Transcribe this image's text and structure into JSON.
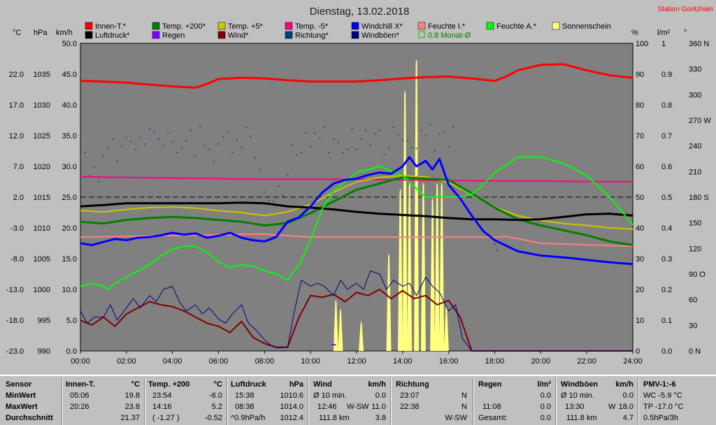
{
  "chart_data": {
    "type": "line",
    "title": "Dienstag, 13.02.2018",
    "station": "Station Goritzhain",
    "colors": {
      "plot_bg": "#808080",
      "frame_bg": "#c0c0c0",
      "station": "#ff0000",
      "title": "#202020",
      "axis_text": "#000000"
    },
    "unit_labels": {
      "celsius": "°C",
      "hpa": "hPa",
      "kmh": "km/h",
      "percent": "%",
      "lm2": "l/m²",
      "degree": "°"
    },
    "x_ticks": [
      "00:00",
      "02:00",
      "04:00",
      "06:00",
      "08:00",
      "10:00",
      "12:00",
      "14:00",
      "16:00",
      "18:00",
      "20:00",
      "22:00",
      "24:00"
    ],
    "left_temp_ticks": [
      "22.0",
      "17.0",
      "12.0",
      "7.0",
      "2.0",
      "-3.0",
      "-8.0",
      "-13.0",
      "-18.0",
      "-23.0"
    ],
    "left_hpa_ticks": [
      "1035",
      "1030",
      "1025",
      "1020",
      "1015",
      "1010",
      "1005",
      "1000",
      "995",
      "990"
    ],
    "left_kmh_ticks": [
      "50.0",
      "45.0",
      "40.0",
      "35.0",
      "30.0",
      "25.0",
      "20.0",
      "15.0",
      "10.0",
      "5.0",
      "0.0"
    ],
    "right_pct_ticks": [
      "100",
      "90",
      "80",
      "70",
      "60",
      "50",
      "40",
      "30",
      "20",
      "10",
      "0"
    ],
    "right_lm2_ticks": [
      "1",
      "0.9",
      "0.8",
      "0.7",
      "0.6",
      "0.5",
      "0.4",
      "0.3",
      "0.2",
      "0.1",
      "0.0"
    ],
    "right_deg_ticks": [
      "360 N",
      "330",
      "300",
      "270 W",
      "240",
      "210",
      "180 S",
      "150",
      "120",
      "90 O",
      "60",
      "30",
      "0   N"
    ],
    "legend": [
      {
        "label": "Innen-T.*",
        "color": "#ff0000"
      },
      {
        "label": "Temp. +200*",
        "color": "#008000"
      },
      {
        "label": "Temp. +5*",
        "color": "#c8c800"
      },
      {
        "label": "Temp. -5*",
        "color": "#ff0080"
      },
      {
        "label": "Windchill X*",
        "color": "#0000ff"
      },
      {
        "label": "Feuchte I.*",
        "color": "#ff8080"
      },
      {
        "label": "Feuchte A.*",
        "color": "#00ff00"
      },
      {
        "label": "Sonnenschein",
        "color": "#ffff80"
      },
      {
        "label": "Luftdruck*",
        "color": "#000000"
      },
      {
        "label": "Regen",
        "color": "#8000ff"
      },
      {
        "label": "Wind*",
        "color": "#800000"
      },
      {
        "label": "Richtung*",
        "color": "#004080"
      },
      {
        "label": "Windböen*",
        "color": "#000080"
      },
      {
        "label": "0.8 Monat-Ø",
        "color": "#00c000",
        "text_color": "#008000",
        "hollow": true
      }
    ],
    "series": [
      {
        "name": "Innen-T.",
        "color": "#ff0000",
        "axis": "temp",
        "width": 3,
        "x": [
          0,
          1,
          2,
          3,
          4,
          5,
          5.5,
          6,
          7,
          8,
          9,
          10,
          11,
          12,
          13,
          14,
          15,
          16,
          17,
          18,
          18.5,
          19,
          20,
          21,
          22,
          23,
          24
        ],
        "y": [
          20.9,
          20.8,
          20.6,
          20.3,
          20.0,
          19.8,
          20.4,
          21.2,
          21.4,
          21.3,
          21.0,
          20.8,
          20.8,
          20.8,
          21.0,
          21.3,
          21.5,
          21.6,
          21.3,
          20.9,
          21.6,
          22.6,
          23.5,
          23.6,
          22.6,
          21.8,
          21.4
        ]
      },
      {
        "name": "Temp. +200",
        "color": "#008000",
        "axis": "temp",
        "width": 3,
        "x": [
          0,
          1,
          2,
          3,
          4,
          5,
          6,
          7,
          8,
          9,
          10,
          11,
          12,
          13,
          14,
          15,
          16,
          17,
          18,
          19,
          20,
          21,
          22,
          23,
          24
        ],
        "y": [
          -2.0,
          -2.3,
          -1.7,
          -1.4,
          -1.2,
          -1.4,
          -1.7,
          -2.0,
          -2.6,
          -2.2,
          -0.6,
          1.3,
          3.2,
          4.2,
          5.2,
          5.0,
          4.8,
          2.6,
          0.3,
          -1.6,
          -2.6,
          -3.4,
          -4.2,
          -5.2,
          -5.8
        ]
      },
      {
        "name": "Temp. +5",
        "color": "#c8c800",
        "axis": "temp",
        "width": 2,
        "x": [
          0,
          1,
          2,
          3,
          4,
          5,
          6,
          7,
          8,
          9,
          10,
          11,
          12,
          13,
          14,
          15,
          16,
          17,
          18,
          19,
          20,
          21,
          22,
          23,
          24
        ],
        "y": [
          -0.2,
          -0.4,
          0.0,
          0.3,
          0.4,
          0.2,
          -0.2,
          -0.5,
          -1.0,
          -0.4,
          0.8,
          2.8,
          4.5,
          5.2,
          5.5,
          5.3,
          4.4,
          2.4,
          0.4,
          -1.0,
          -1.8,
          -2.3,
          -2.6,
          -3.0,
          -3.2
        ]
      },
      {
        "name": "Temp. -5",
        "color": "#ff0080",
        "axis": "temp",
        "width": 2,
        "x": [
          0,
          4,
          8,
          12,
          16,
          20,
          24
        ],
        "y": [
          5.3,
          5.1,
          4.9,
          4.9,
          4.7,
          4.6,
          4.5
        ]
      },
      {
        "name": "Windchill X",
        "color": "#0000ff",
        "axis": "temp",
        "width": 3,
        "x": [
          0,
          0.5,
          1,
          1.5,
          2,
          2.5,
          3,
          3.5,
          4,
          4.5,
          5,
          5.5,
          6,
          6.5,
          7,
          7.5,
          8,
          8.5,
          9,
          9.5,
          10,
          10.5,
          11,
          11.5,
          12,
          12.5,
          13,
          13.5,
          14,
          14.3,
          14.6,
          15,
          15.3,
          15.6,
          16,
          16.5,
          17,
          17.5,
          18,
          19,
          20,
          21,
          22,
          23,
          24
        ],
        "y": [
          -5.5,
          -5.8,
          -5.3,
          -4.8,
          -5.0,
          -4.6,
          -4.5,
          -4.2,
          -3.8,
          -4.1,
          -3.9,
          -4.6,
          -4.3,
          -3.8,
          -4.6,
          -5.0,
          -5.2,
          -4.5,
          -2.0,
          -1.3,
          0.5,
          2.7,
          4.2,
          4.8,
          5.0,
          5.6,
          6.0,
          5.8,
          7.0,
          8.5,
          7.0,
          7.9,
          6.5,
          8.2,
          4.0,
          1.8,
          -1.0,
          -3.5,
          -5.0,
          -6.8,
          -7.5,
          -7.8,
          -8.2,
          -8.6,
          -8.9
        ]
      },
      {
        "name": "Feuchte I.",
        "color": "#ff8080",
        "axis": "pct",
        "width": 2,
        "x": [
          0,
          4,
          8,
          10,
          12,
          14,
          16,
          17,
          17.5,
          18,
          18.5,
          19,
          20,
          24
        ],
        "y": [
          37,
          37.5,
          38,
          37,
          37,
          37,
          37,
          37,
          37,
          37,
          37.2,
          36.5,
          35,
          34
        ]
      },
      {
        "name": "Feuchte A.",
        "color": "#00ff00",
        "axis": "pct",
        "width": 2,
        "x": [
          0,
          0.5,
          1,
          1.2,
          1.5,
          2,
          2.5,
          3,
          3.5,
          4,
          4.5,
          5,
          5.5,
          6,
          6.5,
          7,
          7.5,
          8,
          8.5,
          9,
          9.5,
          10,
          10.5,
          11,
          11.5,
          12,
          12.5,
          13,
          14,
          15,
          15.5,
          16,
          16.5,
          17,
          17.5,
          18,
          19,
          20,
          21,
          22,
          23,
          24
        ],
        "y": [
          21,
          22,
          21,
          20,
          22,
          24,
          26,
          28,
          31,
          33,
          34,
          34,
          32,
          29,
          27,
          28,
          27.5,
          26,
          25,
          23,
          28,
          36,
          46,
          52,
          55,
          58,
          59,
          60,
          57,
          50,
          50,
          50,
          50,
          51,
          54,
          58,
          63,
          63,
          61,
          57,
          50,
          41
        ]
      },
      {
        "name": "Luftdruck",
        "color": "#000000",
        "axis": "hpa",
        "width": 3,
        "x": [
          0,
          1,
          2,
          3,
          4,
          5,
          6,
          7,
          8,
          9,
          10,
          11,
          12,
          13,
          14,
          15,
          16,
          17,
          18,
          19,
          20,
          21,
          22,
          23,
          24
        ],
        "y": [
          1013.5,
          1013.7,
          1014.0,
          1014.0,
          1014.0,
          1014.0,
          1014.0,
          1014.1,
          1014.0,
          1013.5,
          1013.3,
          1013.0,
          1012.6,
          1012.3,
          1012.1,
          1011.9,
          1011.6,
          1011.4,
          1011.4,
          1011.3,
          1011.4,
          1011.8,
          1012.2,
          1012.3,
          1012.0
        ]
      },
      {
        "name": "Wind",
        "color": "#800000",
        "axis": "kmh",
        "width": 2,
        "x": [
          0,
          0.5,
          1,
          1.5,
          2,
          2.5,
          3,
          3.5,
          4,
          4.5,
          5,
          5.5,
          6,
          6.5,
          7,
          7.5,
          8,
          8.5,
          9,
          9.5,
          10,
          10.5,
          11,
          11.5,
          12,
          12.5,
          13,
          13.5,
          14,
          14.5,
          15,
          15.5,
          16,
          16.5,
          17,
          18,
          19,
          24
        ],
        "y": [
          5.0,
          4.2,
          5.5,
          4.0,
          6.0,
          7.0,
          8.0,
          7.5,
          7.2,
          6.5,
          5.5,
          4.5,
          4.0,
          3.0,
          4.8,
          2.2,
          1.2,
          0.6,
          0.6,
          5.5,
          9.0,
          8.7,
          9.2,
          8.0,
          9.5,
          9.0,
          10.0,
          8.5,
          9.8,
          8.5,
          9.0,
          7.5,
          8.2,
          5.5,
          0.0,
          0.0,
          0.0,
          0.0
        ]
      },
      {
        "name": "Windböen",
        "color": "#000080",
        "axis": "kmh",
        "width": 1,
        "x": [
          0,
          0.3,
          0.6,
          1,
          1.3,
          1.6,
          2,
          2.3,
          2.6,
          3,
          3.3,
          3.6,
          4,
          4.3,
          4.6,
          5,
          5.3,
          5.6,
          6,
          6.3,
          6.6,
          7,
          7.3,
          7.6,
          8,
          8.3,
          8.6,
          9,
          9.3,
          9.6,
          10,
          10.3,
          10.6,
          11,
          11.3,
          11.6,
          12,
          12.3,
          12.6,
          13,
          13.3,
          13.6,
          14,
          14.3,
          14.6,
          15,
          15.3,
          15.6,
          16,
          16.3,
          16.6,
          17,
          18,
          19,
          24
        ],
        "y": [
          6.5,
          4.5,
          5.5,
          5.5,
          7.5,
          5.0,
          7.0,
          8.5,
          7.0,
          9.0,
          8.0,
          10.0,
          10.5,
          8.0,
          6.5,
          7.5,
          6.0,
          7.0,
          5.2,
          4.5,
          6.0,
          7.5,
          4.5,
          3.5,
          1.8,
          0.8,
          0.5,
          0.6,
          6.5,
          11.5,
          10.5,
          11.0,
          10.5,
          9.0,
          11.5,
          10.0,
          11.0,
          10.0,
          13.0,
          12.5,
          10.0,
          11.5,
          10.5,
          11.0,
          9.0,
          12.0,
          10.5,
          9.5,
          6.5,
          7.5,
          2.0,
          0.0,
          0.0,
          0.0,
          0.0
        ]
      },
      {
        "name": "Regen",
        "color": "#8000ff",
        "axis": "lm2",
        "width": 2,
        "x": [
          10.9,
          11.1
        ],
        "y": [
          0.02,
          0.02
        ]
      }
    ],
    "sunshine_spikes": [
      {
        "x": 11.1,
        "v": 0.17
      },
      {
        "x": 11.3,
        "v": 0.14
      },
      {
        "x": 12.2,
        "v": 0.1
      },
      {
        "x": 13.4,
        "v": 0.32
      },
      {
        "x": 13.9,
        "v": 0.53
      },
      {
        "x": 14.1,
        "v": 0.85
      },
      {
        "x": 14.3,
        "v": 0.55
      },
      {
        "x": 14.6,
        "v": 0.95
      },
      {
        "x": 14.9,
        "v": 0.55
      },
      {
        "x": 15.3,
        "v": 0.5
      },
      {
        "x": 15.5,
        "v": 0.55
      },
      {
        "x": 15.7,
        "v": 0.55
      },
      {
        "x": 15.9,
        "v": 0.15
      }
    ],
    "direction_dots_deg": {
      "x": [
        0,
        0.2,
        0.4,
        0.6,
        0.8,
        1,
        1.2,
        1.4,
        1.6,
        1.8,
        2,
        2.2,
        2.4,
        2.6,
        2.8,
        3,
        3.2,
        3.4,
        3.6,
        3.8,
        4,
        4.2,
        4.4,
        4.6,
        4.8,
        5,
        5.2,
        5.4,
        5.6,
        5.8,
        6,
        6.2,
        6.4,
        6.6,
        6.8,
        7,
        7.2,
        7.4,
        7.6,
        7.8,
        8,
        8.2,
        8.4,
        8.6,
        8.8,
        9,
        9.2,
        9.4,
        9.6,
        9.8,
        10,
        10.2,
        10.4,
        10.6,
        10.8,
        11,
        11.2,
        11.4,
        11.6,
        11.8,
        12,
        12.2,
        12.4,
        12.6,
        12.8,
        13,
        13.2,
        13.4,
        13.6,
        13.8,
        14,
        14.2,
        14.4,
        14.6,
        14.8,
        15,
        15.2,
        15.4,
        15.6,
        15.8,
        16,
        16.2,
        18,
        18.1
      ],
      "y": [
        245,
        232,
        205,
        215,
        198,
        228,
        238,
        248,
        222,
        240,
        250,
        245,
        236,
        250,
        242,
        260,
        256,
        248,
        240,
        255,
        245,
        232,
        238,
        246,
        258,
        228,
        262,
        240,
        236,
        222,
        242,
        250,
        256,
        232,
        247,
        238,
        262,
        251,
        226,
        212,
        186,
        176,
        175,
        193,
        182,
        206,
        241,
        229,
        232,
        255,
        239,
        255,
        249,
        262,
        232,
        248,
        244,
        232,
        236,
        260,
        236,
        248,
        258,
        241,
        254,
        258,
        230,
        237,
        262,
        253,
        246,
        246,
        238,
        237,
        258,
        252,
        265,
        234,
        254,
        256,
        239,
        262,
        125,
        118
      ]
    }
  },
  "stats": {
    "sensor": {
      "hdr": "Sensor",
      "rows": [
        "MinWert",
        "MaxWert",
        "Durchschnitt"
      ]
    },
    "innen": {
      "hdr": "Innen-T.",
      "unit": "°C",
      "min_time": "05:06",
      "min_val": "19.8",
      "max_time": "20:26",
      "max_val": "23.8",
      "avg": "21.37"
    },
    "temp": {
      "hdr": "Temp. +200",
      "unit": "°C",
      "min_time": "23:54",
      "min_val": "-6.0",
      "max_time": "14:16",
      "max_val": "5.2",
      "avg_note": "( -1.27 )",
      "avg": "-0.52"
    },
    "druck": {
      "hdr": "Luftdruck",
      "unit": "hPa",
      "min_time": "15:38",
      "min_val": "1010.6",
      "max_time": "08:38",
      "max_val": "1014.0",
      "avg_note": "^0.9hPa/h",
      "avg": "1012.4"
    },
    "wind": {
      "hdr": "Wind",
      "unit": "km/h",
      "r1_label": "Ø 10 min.",
      "r1_val": "0.0",
      "r2_time": "12:46",
      "r2_dir": "W-SW",
      "r2_val": "11.0",
      "r3_km": "111.8 km",
      "r3_val": "3.8"
    },
    "richtung": {
      "hdr": "Richtung",
      "r1_time": "23:07",
      "r1_dir": "N",
      "r2_time": "22:38",
      "r2_dir": "N",
      "r3_dir": "W-SW"
    },
    "regen": {
      "hdr": "Regen",
      "unit": "l/m²",
      "r1_val": "0.0",
      "r2_time": "11:08",
      "r2_val": "0.0",
      "r3_label": "Gesamt:",
      "r3_val": "0.0"
    },
    "boeen": {
      "hdr": "Windböen",
      "unit": "km/h",
      "r1_label": "Ø 10 min.",
      "r1_val": "0.0",
      "r2_time": "13:30",
      "r2_dir": "W",
      "r2_val": "18.0",
      "r3_km": "111.8 km",
      "r3_val": "4.7"
    },
    "pmv": {
      "hdr": "PMV-1:-6",
      "r1": "WC -5.9 °C",
      "r2": "TP -17.0 °C",
      "r3": "0.5hPa/3h"
    }
  }
}
